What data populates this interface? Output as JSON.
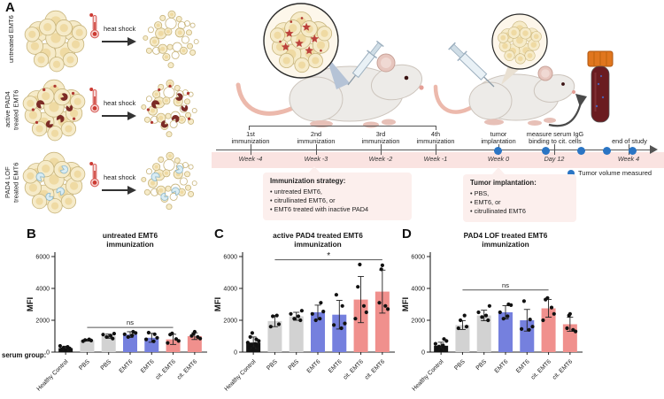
{
  "figure": {
    "panels": {
      "a": "A",
      "b": "B",
      "c": "C",
      "d": "D"
    }
  },
  "panelA": {
    "rows": [
      {
        "label": "untreated EMT6",
        "heat_shock": "heat shock"
      },
      {
        "label": "active PAD4\ntreated EMT6",
        "heat_shock": "heat shock"
      },
      {
        "label": "PAD4 LOF\ntreated EMT6",
        "heat_shock": "heat shock"
      }
    ],
    "timeline": {
      "events": [
        {
          "label": "1st\nimmunization",
          "time": "Week -4"
        },
        {
          "label": "2nd\nimmunization",
          "time": "Week -3"
        },
        {
          "label": "3rd\nimmunization",
          "time": "Week -2"
        },
        {
          "label": "4th\nimmunization",
          "time": "Week -1"
        },
        {
          "label": "tumor\nimplantation",
          "time": "Week 0"
        },
        {
          "label": "measure serum IgG\nbinding to cit. cells",
          "time": "Day 12"
        },
        {
          "label": "end of study",
          "time": "Week 4"
        }
      ],
      "legend": "Tumor volume measured"
    },
    "immunization_strategy": {
      "title": "Immunization strategy:",
      "items": [
        "• untreated EMT6,",
        "• citrullinated EMT6, or",
        "• EMT6 treated with inactive PAD4"
      ]
    },
    "tumor_implantation": {
      "title": "Tumor implantation:",
      "items": [
        "• PBS,",
        "• EMT6, or",
        "• citrullinated EMT6"
      ]
    }
  },
  "serum_group_label": "serum group:",
  "colors": {
    "bars": {
      "black": "#141414",
      "gray": "#d2d2d2",
      "blue": "#7580de",
      "pink": "#f0908d"
    },
    "dot": "#111111",
    "timeline_dot": "#2a75c4",
    "timeline_band": "#fae3e1",
    "callout_bg": "#fcefed",
    "maroon_pad4": "#7c2b26",
    "lof_pad4_blue": "#d9ecf3",
    "citrulline_star": "#bb423b",
    "heat_shock_red": "#cc3b33"
  },
  "chart_data": [
    {
      "type": "bar",
      "panel": "B",
      "title": "untreated EMT6",
      "subtitle": "immunization",
      "xlabel": "",
      "ylabel": "MFI",
      "ylim": [
        0,
        6000
      ],
      "yticks": [
        0,
        2000,
        4000,
        6000
      ],
      "categories": [
        "Healthy Control",
        "PBS",
        "PBS",
        "EMT6",
        "EMT6",
        "cit. EMT6",
        "cit. EMT6"
      ],
      "bar_colors": [
        "black",
        "gray",
        "gray",
        "blue",
        "blue",
        "pink",
        "pink"
      ],
      "means": [
        250,
        750,
        1000,
        1100,
        900,
        800,
        1000
      ],
      "sd": [
        120,
        60,
        130,
        180,
        280,
        320,
        210
      ],
      "points": [
        [
          120,
          180,
          230,
          280,
          330,
          390
        ],
        [
          690,
          730,
          760,
          800
        ],
        [
          850,
          950,
          1020,
          1100,
          1160
        ],
        [
          950,
          1050,
          1120,
          1200,
          1280
        ],
        [
          680,
          800,
          900,
          1120,
          1220
        ],
        [
          580,
          700,
          820,
          1100,
          1180
        ],
        [
          850,
          950,
          1020,
          1150,
          1280
        ]
      ],
      "significance": {
        "label": "ns",
        "from": 1,
        "to": 5,
        "y": 1550
      }
    },
    {
      "type": "bar",
      "panel": "C",
      "title": "active PAD4 treated EMT6",
      "subtitle": "immunization",
      "xlabel": "",
      "ylabel": "MFI",
      "ylim": [
        0,
        6000
      ],
      "yticks": [
        0,
        2000,
        4000,
        6000
      ],
      "categories": [
        "Healthy Control",
        "PBS",
        "PBS",
        "EMT6",
        "EMT6",
        "cit. EMT6",
        "cit. EMT6"
      ],
      "bar_colors": [
        "black",
        "gray",
        "gray",
        "blue",
        "blue",
        "pink",
        "pink"
      ],
      "means": [
        600,
        1950,
        2250,
        2500,
        2350,
        3300,
        3800
      ],
      "sd": [
        350,
        350,
        250,
        450,
        900,
        1450,
        1350
      ],
      "points": [
        [
          200,
          300,
          380,
          450,
          520,
          600,
          700,
          800,
          950,
          1200
        ],
        [
          1600,
          1750,
          2250,
          2300
        ],
        [
          2000,
          2100,
          2250,
          2400,
          2600
        ],
        [
          2000,
          2100,
          2400,
          2550,
          3100
        ],
        [
          1500,
          1700,
          1800,
          2900,
          3600
        ],
        [
          2100,
          2500,
          2900,
          4100,
          5500
        ],
        [
          2700,
          2900,
          3100,
          5200,
          5450
        ]
      ],
      "significance": {
        "label": "*",
        "from": 1,
        "to": 6,
        "y": 5800
      }
    },
    {
      "type": "bar",
      "panel": "D",
      "title": "PAD4 LOF treated EMT6",
      "subtitle": "immunization",
      "xlabel": "",
      "ylabel": "MFI",
      "ylim": [
        0,
        6000
      ],
      "yticks": [
        0,
        2000,
        4000,
        6000
      ],
      "categories": [
        "Healthy Control",
        "PBS",
        "PBS",
        "EMT6",
        "EMT6",
        "cit. EMT6",
        "cit. EMT6"
      ],
      "bar_colors": [
        "black",
        "gray",
        "gray",
        "blue",
        "blue",
        "pink",
        "pink"
      ],
      "means": [
        400,
        1700,
        2300,
        2500,
        2000,
        2750,
        1750
      ],
      "sd": [
        220,
        280,
        330,
        420,
        680,
        560,
        440
      ],
      "points": [
        [
          120,
          200,
          280,
          350,
          430,
          520,
          700,
          820
        ],
        [
          1500,
          1600,
          2000,
          2300
        ],
        [
          2000,
          2200,
          2300,
          2500,
          2900
        ],
        [
          2100,
          2250,
          2500,
          2950,
          3000
        ],
        [
          1400,
          1450,
          1600,
          2050,
          3200
        ],
        [
          2000,
          2400,
          2800,
          3300,
          3400
        ],
        [
          1300,
          1400,
          1500,
          2300,
          2400
        ]
      ],
      "significance": {
        "label": "ns",
        "from": 1,
        "to": 5,
        "y": 3900
      }
    }
  ]
}
